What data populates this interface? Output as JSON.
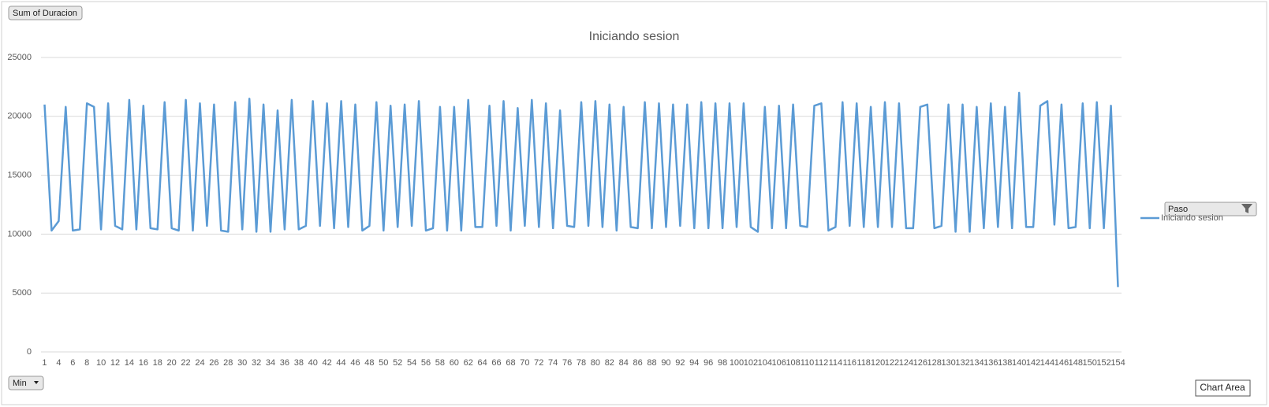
{
  "chart_data": {
    "type": "line",
    "title": "Iniciando sesion",
    "value_field_button": "Sum of Duracion",
    "axis_field_button": "Min",
    "legend_field_button": "Paso",
    "tooltip": "Chart Area",
    "categories": [
      1,
      null,
      4,
      null,
      6,
      null,
      8,
      null,
      10,
      null,
      12,
      null,
      14,
      null,
      16,
      null,
      18,
      null,
      20,
      null,
      22,
      null,
      24,
      null,
      26,
      null,
      28,
      null,
      30,
      null,
      32,
      null,
      34,
      null,
      36,
      null,
      38,
      null,
      40,
      null,
      42,
      null,
      44,
      null,
      46,
      null,
      48,
      null,
      50,
      null,
      52,
      null,
      54,
      null,
      56,
      null,
      58,
      null,
      60,
      null,
      62,
      null,
      64,
      null,
      66,
      null,
      68,
      null,
      70,
      null,
      72,
      null,
      74,
      null,
      76,
      null,
      78,
      null,
      80,
      null,
      82,
      null,
      84,
      null,
      86,
      null,
      88,
      null,
      90,
      null,
      92,
      null,
      94,
      null,
      96,
      null,
      98,
      null,
      100,
      null,
      102,
      null,
      104,
      null,
      106,
      null,
      108,
      null,
      110,
      null,
      112,
      null,
      114,
      null,
      116,
      null,
      118,
      null,
      120,
      null,
      122,
      null,
      124,
      null,
      126,
      null,
      128,
      null,
      130,
      null,
      132,
      null,
      134,
      null,
      136,
      null,
      138,
      null,
      140,
      null,
      142,
      null,
      144,
      null,
      146,
      null,
      148,
      null,
      150,
      null,
      152,
      null,
      154
    ],
    "series": [
      {
        "name": "Iniciando sesion",
        "color": "#5b9bd5",
        "values": [
          21000,
          10300,
          11100,
          20800,
          10300,
          10400,
          21100,
          20800,
          10400,
          21100,
          10700,
          10400,
          21400,
          10400,
          20900,
          10500,
          10400,
          21200,
          10500,
          10300,
          21400,
          10300,
          21100,
          10700,
          21000,
          10300,
          10200,
          21200,
          10400,
          21500,
          10200,
          21000,
          10200,
          20500,
          10400,
          21400,
          10400,
          10700,
          21300,
          10700,
          21100,
          10500,
          21300,
          10600,
          21000,
          10300,
          10700,
          21200,
          10300,
          20900,
          10600,
          21000,
          10700,
          21300,
          10300,
          10500,
          20800,
          10300,
          20800,
          10300,
          21400,
          10600,
          10600,
          20900,
          10700,
          21300,
          10300,
          20700,
          10700,
          21400,
          10600,
          21100,
          10500,
          20500,
          10700,
          10600,
          21200,
          10700,
          21300,
          10600,
          21000,
          10300,
          20800,
          10600,
          10500,
          21200,
          10500,
          21100,
          10600,
          21000,
          10700,
          21000,
          10500,
          21200,
          10500,
          21100,
          10500,
          21100,
          10600,
          21100,
          10600,
          10200,
          20800,
          10500,
          20900,
          10500,
          21000,
          10700,
          10600,
          20900,
          21100,
          10300,
          10600,
          21200,
          10700,
          21100,
          10600,
          20800,
          10600,
          21200,
          10600,
          21100,
          10500,
          10500,
          20800,
          21000,
          10500,
          10700,
          21000,
          10200,
          21000,
          10200,
          20800,
          10500,
          21100,
          10600,
          20800,
          10500,
          22000,
          10600,
          10600,
          20900,
          21300,
          10800,
          21000,
          10500,
          10600,
          21100,
          10500,
          21200,
          10500,
          20900,
          5500
        ]
      }
    ],
    "ylim": [
      0,
      25000
    ],
    "yticks": [
      0,
      5000,
      10000,
      15000,
      20000,
      25000
    ],
    "grid": true,
    "legend": "right"
  }
}
